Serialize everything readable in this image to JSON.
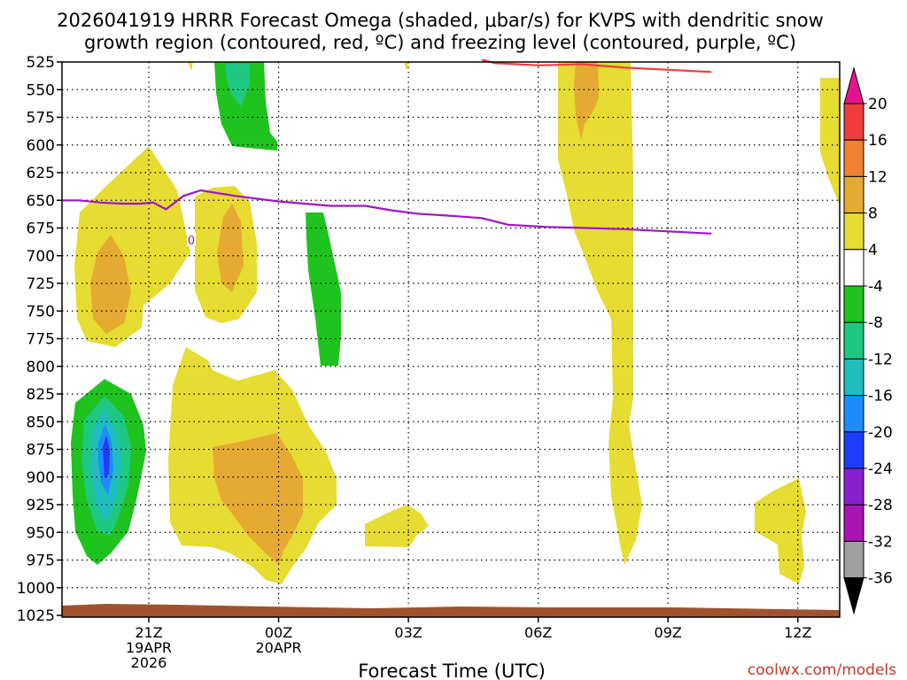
{
  "chart_data": {
    "type": "heatmap",
    "title_line1": "2026041919 HRRR Forecast Omega (shaded, μbar/s) for KVPS with dendritic snow",
    "title_line2": "growth region (contoured, red, ºC) and freezing level (contoured, purple, ºC)",
    "xlabel": "Forecast Time (UTC)",
    "credit": "coolwx.com/models",
    "y_ticks": [
      "525",
      "550",
      "575",
      "600",
      "625",
      "650",
      "675",
      "700",
      "725",
      "750",
      "775",
      "800",
      "825",
      "850",
      "875",
      "900",
      "925",
      "950",
      "975",
      "1000",
      "1025"
    ],
    "x_ticks": [
      {
        "label": "21Z",
        "sub1": "19APR",
        "sub2": "2026"
      },
      {
        "label": "00Z",
        "sub1": "20APR",
        "sub2": ""
      },
      {
        "label": "03Z",
        "sub1": "",
        "sub2": ""
      },
      {
        "label": "06Z",
        "sub1": "",
        "sub2": ""
      },
      {
        "label": "09Z",
        "sub1": "",
        "sub2": ""
      },
      {
        "label": "12Z",
        "sub1": "",
        "sub2": ""
      }
    ],
    "colorbar": {
      "labels": [
        "20",
        "16",
        "12",
        "8",
        "4",
        "-4",
        "-8",
        "-12",
        "-16",
        "-20",
        "-24",
        "-28",
        "-32",
        "-36"
      ],
      "colors": [
        "#f03c3c",
        "#f08232",
        "#e6aa32",
        "#e6dc32",
        "#ffffff",
        "#1ec31e",
        "#1ec882",
        "#1ebebe",
        "#1e8cff",
        "#1e3cff",
        "#8c1ed2",
        "#aa14b4",
        "#a0a0a0"
      ],
      "top_color": "#e6148c",
      "bottom_color": "#000000"
    },
    "series": [
      {
        "name": "freezing level",
        "contour_label": "0",
        "color": "#a014c8",
        "x": [
          -2.0,
          -1.6,
          -1.1,
          -0.6,
          -0.2,
          0.1,
          0.4,
          0.8,
          1.2,
          2.0,
          3.0,
          3.6,
          4.2,
          5.0,
          5.6,
          6.2,
          7.0,
          7.7,
          8.3,
          9.2,
          10.1,
          11.0,
          12.0,
          13.0
        ],
        "y": [
          650,
          650,
          652,
          653,
          653,
          652,
          658,
          646,
          641,
          646,
          651,
          653,
          655,
          655,
          659,
          662,
          664,
          666,
          672,
          674,
          675,
          676,
          678,
          680
        ]
      },
      {
        "name": "dendritic snow growth region",
        "color": "#f03c3c",
        "x": [
          7.7,
          8.0,
          8.5,
          9.0,
          10.0,
          11.0,
          12.0,
          13.0
        ],
        "y": [
          523,
          526,
          527,
          528,
          527,
          530,
          532,
          534
        ]
      }
    ]
  }
}
